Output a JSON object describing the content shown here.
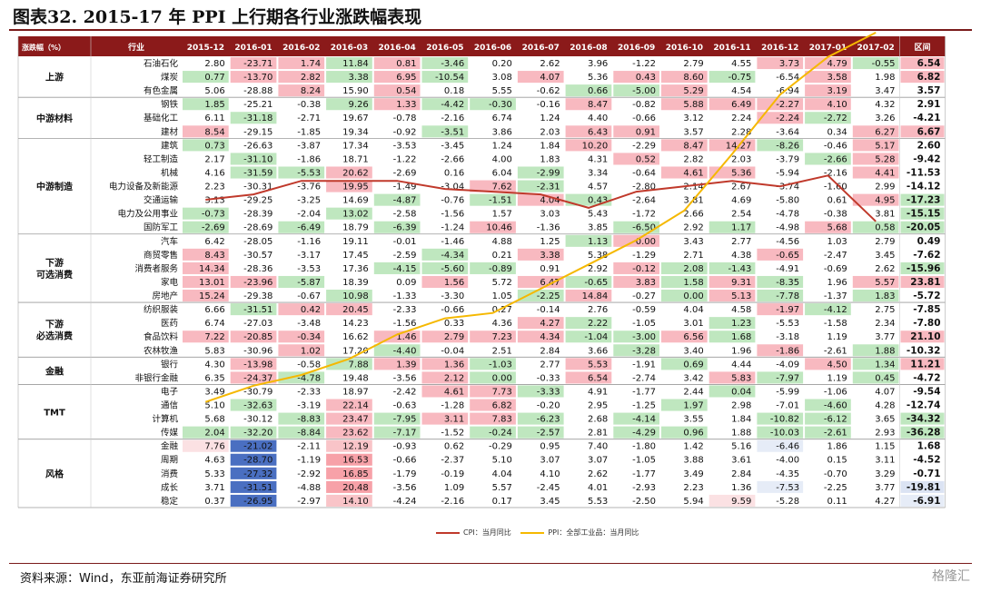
{
  "title": "图表32. 2015-17 年 PPI 上行期各行业涨跌幅表现",
  "source": "资料来源：Wind，东亚前海证券研究所",
  "watermark": "格隆汇",
  "legend": [
    {
      "label": "CPI：当月同比",
      "color": "#c0392b"
    },
    {
      "label": "PPI：全部工业品：当月同比",
      "color": "#f5b800"
    }
  ],
  "chart_data": {
    "type": "table",
    "header": {
      "group": "涨跌幅（%）",
      "industry": "行业",
      "months": [
        "2015-12",
        "2016-01",
        "2016-02",
        "2016-03",
        "2016-04",
        "2016-05",
        "2016-06",
        "2016-07",
        "2016-08",
        "2016-09",
        "2016-10",
        "2016-11",
        "2016-12",
        "2017-01",
        "2017-02"
      ],
      "range": "区间"
    },
    "groups": [
      {
        "name": "上游",
        "rows": [
          {
            "name": "石油石化",
            "values": [
              "2.80",
              "-23.71",
              "1.74",
              "11.84",
              "0.81",
              "-3.46",
              "0.20",
              "2.62",
              "3.96",
              "-1.22",
              "2.79",
              "4.55",
              "3.73",
              "4.79",
              "-0.55"
            ],
            "range": "6.54"
          },
          {
            "name": "煤炭",
            "values": [
              "0.77",
              "-13.70",
              "2.82",
              "3.38",
              "6.95",
              "-10.54",
              "3.08",
              "4.07",
              "5.36",
              "0.43",
              "8.60",
              "-0.75",
              "-6.54",
              "3.58",
              "1.98"
            ],
            "range": "6.82"
          },
          {
            "name": "有色金属",
            "values": [
              "5.06",
              "-28.88",
              "8.24",
              "15.90",
              "0.54",
              "0.18",
              "5.55",
              "-0.62",
              "0.66",
              "-5.00",
              "5.29",
              "4.54",
              "-6.94",
              "3.19",
              "3.47"
            ],
            "range": "3.57"
          }
        ]
      },
      {
        "name": "中游材料",
        "rows": [
          {
            "name": "钢铁",
            "values": [
              "1.85",
              "-25.21",
              "-0.38",
              "9.26",
              "1.33",
              "-4.42",
              "-0.30",
              "-0.16",
              "8.47",
              "-0.82",
              "5.88",
              "6.49",
              "-2.27",
              "4.10",
              "4.32"
            ],
            "range": "2.91"
          },
          {
            "name": "基础化工",
            "values": [
              "6.11",
              "-31.18",
              "-2.71",
              "19.67",
              "-0.78",
              "-2.16",
              "6.74",
              "1.24",
              "4.40",
              "-0.66",
              "3.12",
              "2.24",
              "-2.24",
              "-2.72",
              "3.26"
            ],
            "range": "-4.21"
          },
          {
            "name": "建材",
            "values": [
              "8.54",
              "-29.15",
              "-1.85",
              "19.34",
              "-0.92",
              "-3.51",
              "3.86",
              "2.03",
              "6.43",
              "0.91",
              "3.57",
              "2.28",
              "-3.64",
              "0.34",
              "6.27"
            ],
            "range": "6.67"
          }
        ]
      },
      {
        "name": "中游制造",
        "rows": [
          {
            "name": "建筑",
            "values": [
              "0.73",
              "-26.63",
              "-3.87",
              "17.34",
              "-3.53",
              "-3.45",
              "1.24",
              "1.84",
              "10.20",
              "-2.29",
              "8.47",
              "14.27",
              "-8.26",
              "-0.46",
              "5.17"
            ],
            "range": "2.60"
          },
          {
            "name": "轻工制造",
            "values": [
              "2.17",
              "-31.10",
              "-1.86",
              "18.71",
              "-1.22",
              "-2.66",
              "4.00",
              "1.83",
              "4.31",
              "0.52",
              "2.82",
              "2.03",
              "-3.79",
              "-2.66",
              "5.28"
            ],
            "range": "-9.42"
          },
          {
            "name": "机械",
            "values": [
              "4.16",
              "-31.59",
              "-5.53",
              "20.62",
              "-2.69",
              "0.16",
              "6.04",
              "-2.99",
              "3.34",
              "-0.64",
              "4.61",
              "5.36",
              "-5.94",
              "-2.16",
              "4.41"
            ],
            "range": "-11.53"
          },
          {
            "name": "电力设备及新能源",
            "values": [
              "2.23",
              "-30.31",
              "-3.76",
              "19.95",
              "-1.49",
              "-3.04",
              "7.62",
              "-2.31",
              "4.57",
              "-2.80",
              "2.14",
              "2.67",
              "-3.74",
              "-1.60",
              "2.99"
            ],
            "range": "-14.12"
          },
          {
            "name": "交通运输",
            "values": [
              "3.13",
              "-29.25",
              "-3.25",
              "14.69",
              "-4.87",
              "-0.76",
              "-1.51",
              "4.04",
              "0.43",
              "-2.64",
              "3.81",
              "4.69",
              "-5.80",
              "0.61",
              "4.95"
            ],
            "range": "-17.23"
          },
          {
            "name": "电力及公用事业",
            "values": [
              "-0.73",
              "-28.39",
              "-2.04",
              "13.02",
              "-2.58",
              "-1.56",
              "1.57",
              "3.03",
              "5.43",
              "-1.72",
              "2.66",
              "2.54",
              "-4.78",
              "-0.38",
              "3.81"
            ],
            "range": "-15.15"
          },
          {
            "name": "国防军工",
            "values": [
              "-2.69",
              "-28.69",
              "-6.49",
              "18.79",
              "-6.39",
              "-1.24",
              "10.46",
              "-1.36",
              "3.85",
              "-6.50",
              "2.92",
              "1.17",
              "-4.98",
              "5.68",
              "0.58"
            ],
            "range": "-20.05"
          }
        ]
      },
      {
        "name": "下游 可选消费",
        "rows": [
          {
            "name": "汽车",
            "values": [
              "6.42",
              "-28.05",
              "-1.16",
              "19.11",
              "-0.01",
              "-1.46",
              "4.88",
              "1.25",
              "1.13",
              "0.00",
              "3.43",
              "2.77",
              "-4.56",
              "1.03",
              "2.79"
            ],
            "range": "0.49"
          },
          {
            "name": "商贸零售",
            "values": [
              "8.43",
              "-30.57",
              "-3.17",
              "17.45",
              "-2.59",
              "-4.34",
              "0.21",
              "3.38",
              "5.38",
              "-1.29",
              "2.71",
              "4.38",
              "-0.65",
              "-2.47",
              "3.45"
            ],
            "range": "-7.62"
          },
          {
            "name": "消费者服务",
            "values": [
              "14.34",
              "-28.36",
              "-3.53",
              "17.36",
              "-4.15",
              "-5.60",
              "-0.89",
              "0.91",
              "2.92",
              "-0.12",
              "2.08",
              "-1.43",
              "-4.91",
              "-0.69",
              "2.62"
            ],
            "range": "-15.96"
          },
          {
            "name": "家电",
            "values": [
              "13.01",
              "-23.96",
              "-5.87",
              "18.39",
              "0.09",
              "1.56",
              "5.72",
              "6.47",
              "-0.65",
              "3.83",
              "1.58",
              "9.31",
              "-8.35",
              "1.96",
              "5.57"
            ],
            "range": "23.81"
          },
          {
            "name": "房地产",
            "values": [
              "15.24",
              "-29.38",
              "-0.67",
              "10.98",
              "-1.33",
              "-3.30",
              "1.05",
              "-2.25",
              "14.84",
              "-0.27",
              "0.00",
              "5.13",
              "-7.78",
              "-1.37",
              "1.83"
            ],
            "range": "-5.72"
          }
        ]
      },
      {
        "name": "下游 必选消费",
        "rows": [
          {
            "name": "纺织服装",
            "values": [
              "6.66",
              "-31.51",
              "0.42",
              "20.45",
              "-2.33",
              "-0.66",
              "0.27",
              "-0.14",
              "2.76",
              "-0.59",
              "4.04",
              "4.58",
              "-1.97",
              "-4.12",
              "2.75"
            ],
            "range": "-7.85"
          },
          {
            "name": "医药",
            "values": [
              "6.74",
              "-27.03",
              "-3.48",
              "14.23",
              "-1.56",
              "0.33",
              "4.36",
              "4.27",
              "2.22",
              "-1.05",
              "3.01",
              "1.23",
              "-5.53",
              "-1.58",
              "2.34"
            ],
            "range": "-7.80"
          },
          {
            "name": "食品饮料",
            "values": [
              "7.22",
              "-20.85",
              "-0.34",
              "16.62",
              "1.46",
              "2.79",
              "7.23",
              "4.34",
              "-1.04",
              "-3.00",
              "6.56",
              "1.68",
              "-3.18",
              "1.19",
              "3.77"
            ],
            "range": "21.10"
          },
          {
            "name": "农林牧渔",
            "values": [
              "5.83",
              "-30.96",
              "1.02",
              "17.20",
              "-4.40",
              "-0.04",
              "2.51",
              "2.84",
              "3.66",
              "-3.28",
              "3.40",
              "1.96",
              "-1.86",
              "-2.61",
              "1.88"
            ],
            "range": "-10.32"
          }
        ]
      },
      {
        "name": "金融",
        "rows": [
          {
            "name": "银行",
            "values": [
              "4.30",
              "-13.98",
              "-0.58",
              "7.88",
              "1.39",
              "1.36",
              "-1.03",
              "2.77",
              "5.53",
              "-1.91",
              "0.69",
              "4.44",
              "-4.09",
              "4.50",
              "1.34"
            ],
            "range": "11.21"
          },
          {
            "name": "非银行金融",
            "values": [
              "6.35",
              "-24.37",
              "-4.78",
              "19.48",
              "-3.56",
              "2.12",
              "0.00",
              "-0.33",
              "6.54",
              "-2.74",
              "3.42",
              "5.83",
              "-7.97",
              "1.19",
              "0.45"
            ],
            "range": "-4.72"
          }
        ]
      },
      {
        "name": "TMT",
        "rows": [
          {
            "name": "电子",
            "values": [
              "3.49",
              "-30.79",
              "-2.33",
              "18.97",
              "-2.42",
              "4.61",
              "7.73",
              "-3.33",
              "4.91",
              "-1.77",
              "2.44",
              "0.04",
              "-5.99",
              "-1.06",
              "4.07"
            ],
            "range": "-9.54"
          },
          {
            "name": "通信",
            "values": [
              "5.10",
              "-32.63",
              "-3.19",
              "22.14",
              "-0.63",
              "-1.28",
              "6.82",
              "-0.20",
              "2.95",
              "-1.25",
              "1.97",
              "2.98",
              "-7.01",
              "-4.60",
              "4.28"
            ],
            "range": "-12.74"
          },
          {
            "name": "计算机",
            "values": [
              "5.68",
              "-30.12",
              "-8.83",
              "23.47",
              "-7.95",
              "3.11",
              "7.83",
              "-6.23",
              "2.68",
              "-4.14",
              "3.55",
              "1.84",
              "-10.82",
              "-6.12",
              "3.65"
            ],
            "range": "-34.32"
          },
          {
            "name": "传媒",
            "values": [
              "2.04",
              "-32.20",
              "-8.84",
              "23.62",
              "-7.17",
              "-1.52",
              "-0.24",
              "-2.57",
              "2.81",
              "-4.29",
              "0.96",
              "1.88",
              "-10.03",
              "-2.61",
              "2.93"
            ],
            "range": "-36.28"
          }
        ]
      },
      {
        "name": "风格",
        "rows": [
          {
            "name": "金融",
            "values": [
              "7.76",
              "-21.02",
              "-2.11",
              "12.19",
              "-0.93",
              "0.62",
              "-0.29",
              "0.95",
              "7.40",
              "-1.80",
              "1.42",
              "5.16",
              "-6.46",
              "1.86",
              "1.15"
            ],
            "range": "1.68"
          },
          {
            "name": "周期",
            "values": [
              "4.63",
              "-28.70",
              "-1.19",
              "16.53",
              "-0.66",
              "-2.37",
              "5.10",
              "3.07",
              "3.07",
              "-1.05",
              "3.88",
              "3.61",
              "-4.00",
              "0.15",
              "3.11"
            ],
            "range": "-4.52"
          },
          {
            "name": "消费",
            "values": [
              "5.33",
              "-27.32",
              "-2.92",
              "16.85",
              "-1.79",
              "-0.19",
              "4.04",
              "4.10",
              "2.62",
              "-1.77",
              "3.49",
              "2.84",
              "-4.35",
              "-0.70",
              "3.29"
            ],
            "range": "-0.71"
          },
          {
            "name": "成长",
            "values": [
              "3.71",
              "-31.51",
              "-4.88",
              "20.48",
              "-3.56",
              "1.09",
              "5.57",
              "-2.45",
              "4.01",
              "-2.93",
              "2.23",
              "1.36",
              "-7.53",
              "-2.25",
              "3.77"
            ],
            "range": "-19.81"
          },
          {
            "name": "稳定",
            "values": [
              "0.37",
              "-26.95",
              "-2.97",
              "14.10",
              "-4.24",
              "-2.16",
              "0.17",
              "3.45",
              "5.53",
              "-2.50",
              "5.94",
              "9.59",
              "-5.28",
              "0.11",
              "4.27"
            ],
            "range": "-6.91"
          }
        ]
      }
    ],
    "overlay_lines": [
      {
        "name": "CPI：当月同比",
        "color": "#c0392b",
        "values": [
          1.6,
          1.8,
          2.3,
          2.3,
          2.3,
          2.0,
          1.9,
          1.8,
          1.3,
          1.9,
          2.1,
          2.3,
          2.1,
          2.5,
          0.8
        ]
      },
      {
        "name": "PPI：全部工业品：当月同比",
        "color": "#f5b800",
        "values": [
          -5.9,
          -5.3,
          -4.9,
          -4.3,
          -3.4,
          -2.8,
          -2.6,
          -1.7,
          -0.8,
          0.1,
          1.2,
          3.3,
          5.5,
          6.9,
          7.8
        ]
      }
    ]
  }
}
